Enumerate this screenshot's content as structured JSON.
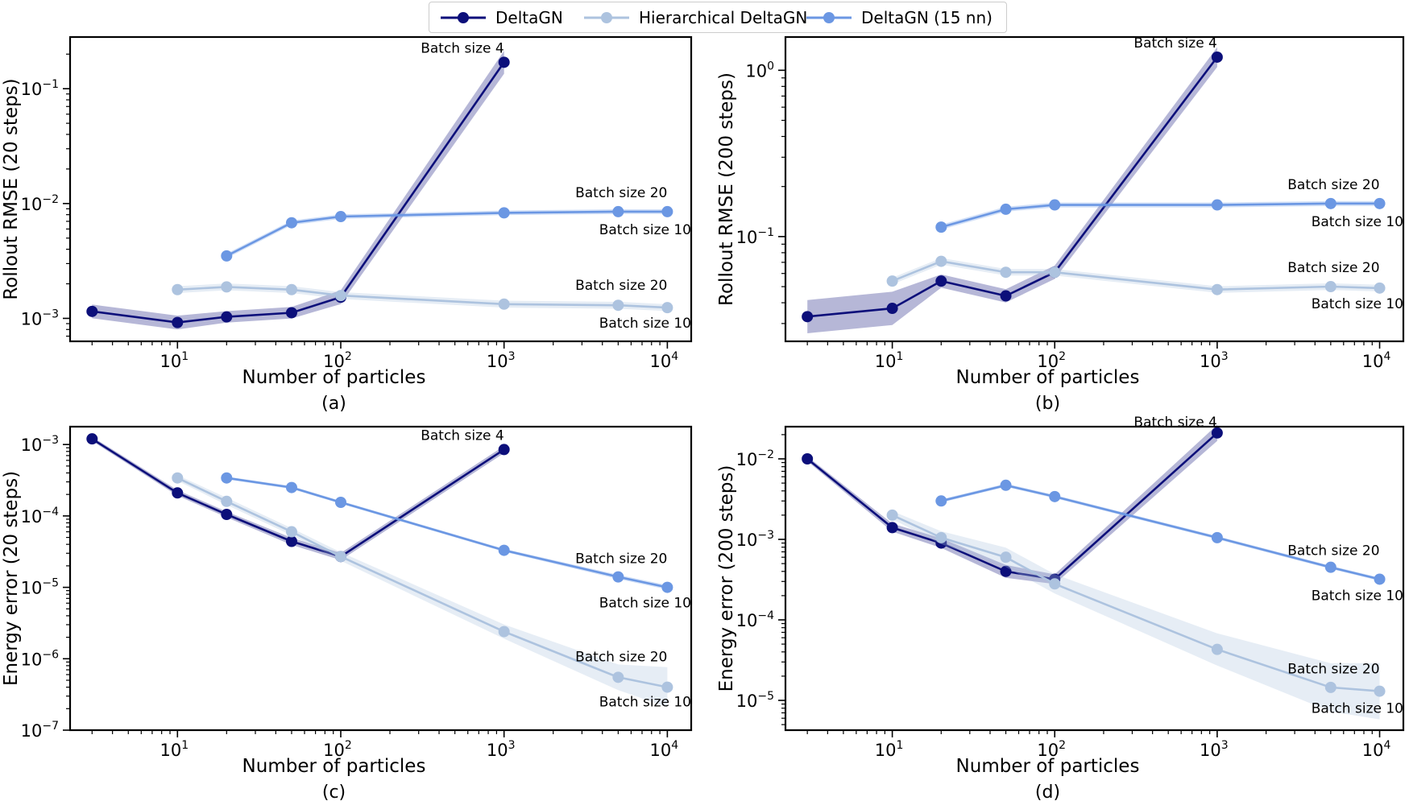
{
  "colors": {
    "DeltaGN": "#0c0f7a",
    "Hierarchical DeltaGN": "#adc3df",
    "DeltaGN (15 nn)": "#6b97e3"
  },
  "legend": {
    "items": [
      {
        "label": "DeltaGN",
        "color": "#0c0f7a"
      },
      {
        "label": "Hierarchical DeltaGN",
        "color": "#adc3df"
      },
      {
        "label": "DeltaGN (15 nn)",
        "color": "#6b97e3"
      }
    ]
  },
  "chart_data": [
    {
      "type": "line",
      "caption": "(a)",
      "xlabel": "Number of particles",
      "ylabel": "Rollout RMSE (20 steps)",
      "xscale": "log",
      "yscale": "log",
      "xlim": [
        2.2,
        14000
      ],
      "ylim_exp": [
        -3.2,
        -0.55
      ],
      "xticks": [
        {
          "value": 10,
          "base": "10",
          "exp": "1"
        },
        {
          "value": 100,
          "base": "10",
          "exp": "2"
        },
        {
          "value": 1000,
          "base": "10",
          "exp": "3"
        },
        {
          "value": 10000,
          "base": "10",
          "exp": "4"
        }
      ],
      "yticks": [
        {
          "exp_value": -3,
          "base": "10",
          "exp": "−3"
        },
        {
          "exp_value": -2,
          "base": "10",
          "exp": "−2"
        },
        {
          "exp_value": -1,
          "base": "10",
          "exp": "−1"
        }
      ],
      "series": [
        {
          "name": "DeltaGN",
          "x": [
            3,
            10,
            20,
            50,
            100,
            1000
          ],
          "y": [
            0.00115,
            0.00092,
            0.00103,
            0.00112,
            0.00153,
            0.17
          ],
          "band": [
            0.06,
            0.06,
            0.05,
            0.05,
            0.06,
            0.1
          ]
        },
        {
          "name": "Hierarchical DeltaGN",
          "x": [
            10,
            20,
            50,
            100,
            1000,
            5000,
            10000
          ],
          "y": [
            0.00178,
            0.00188,
            0.00178,
            0.00158,
            0.00133,
            0.0013,
            0.00124
          ],
          "band": [
            0.03,
            0.03,
            0.03,
            0.03,
            0.03,
            0.03,
            0.03
          ]
        },
        {
          "name": "DeltaGN (15 nn)",
          "x": [
            20,
            50,
            100,
            1000,
            5000,
            10000
          ],
          "y": [
            0.0035,
            0.0068,
            0.0077,
            0.0083,
            0.0085,
            0.0085
          ],
          "band": [
            0.02,
            0.02,
            0.02,
            0.02,
            0.02,
            0.02
          ]
        }
      ],
      "annotations": [
        {
          "text": "Batch size 4",
          "x": 1000,
          "y": 0.17,
          "anchor": "end",
          "dy": -12
        },
        {
          "text": "Batch size 20",
          "x": 10000,
          "y": 0.0085,
          "anchor": "end",
          "dy": -18
        },
        {
          "text": "Batch size 10",
          "x": 14000,
          "y": 0.0085,
          "anchor": "end",
          "dy": 28
        },
        {
          "text": "Batch size 20",
          "x": 10000,
          "y": 0.00124,
          "anchor": "end",
          "dy": -22
        },
        {
          "text": "Batch size 10",
          "x": 14000,
          "y": 0.00124,
          "anchor": "end",
          "dy": 25
        }
      ]
    },
    {
      "type": "line",
      "caption": "(b)",
      "xlabel": "Number of particles",
      "ylabel": "Rollout RMSE (200 steps)",
      "xscale": "log",
      "yscale": "log",
      "xlim": [
        2.2,
        14000
      ],
      "ylim_exp": [
        -1.63,
        0.2
      ],
      "xticks": [
        {
          "value": 10,
          "base": "10",
          "exp": "1"
        },
        {
          "value": 100,
          "base": "10",
          "exp": "2"
        },
        {
          "value": 1000,
          "base": "10",
          "exp": "3"
        },
        {
          "value": 10000,
          "base": "10",
          "exp": "4"
        }
      ],
      "yticks": [
        {
          "exp_value": -1,
          "base": "10",
          "exp": "−1"
        },
        {
          "exp_value": 0,
          "base": "10",
          "exp": "0"
        }
      ],
      "series": [
        {
          "name": "DeltaGN",
          "x": [
            3,
            10,
            20,
            50,
            100,
            1000
          ],
          "y": [
            0.033,
            0.037,
            0.054,
            0.044,
            0.061,
            1.2
          ],
          "band": [
            0.1,
            0.1,
            0.04,
            0.04,
            0.04,
            0.06
          ]
        },
        {
          "name": "Hierarchical DeltaGN",
          "x": [
            10,
            20,
            50,
            100,
            1000,
            5000,
            10000
          ],
          "y": [
            0.054,
            0.071,
            0.061,
            0.061,
            0.048,
            0.05,
            0.049
          ],
          "band": [
            0.02,
            0.02,
            0.02,
            0.02,
            0.02,
            0.02,
            0.02
          ]
        },
        {
          "name": "DeltaGN (15 nn)",
          "x": [
            20,
            50,
            100,
            1000,
            5000,
            10000
          ],
          "y": [
            0.114,
            0.146,
            0.155,
            0.155,
            0.158,
            0.158
          ],
          "band": [
            0.015,
            0.015,
            0.015,
            0.015,
            0.015,
            0.015
          ]
        }
      ],
      "annotations": [
        {
          "text": "Batch size 4",
          "x": 1000,
          "y": 1.2,
          "anchor": "end",
          "dy": -12
        },
        {
          "text": "Batch size 20",
          "x": 10000,
          "y": 0.158,
          "anchor": "end",
          "dy": -18
        },
        {
          "text": "Batch size 10",
          "x": 14000,
          "y": 0.158,
          "anchor": "end",
          "dy": 28
        },
        {
          "text": "Batch size 20",
          "x": 10000,
          "y": 0.049,
          "anchor": "end",
          "dy": -20
        },
        {
          "text": "Batch size 10",
          "x": 14000,
          "y": 0.049,
          "anchor": "end",
          "dy": 25
        }
      ]
    },
    {
      "type": "line",
      "caption": "(c)",
      "xlabel": "Number of particles",
      "ylabel": "Energy error (20 steps)",
      "xscale": "log",
      "yscale": "log",
      "xlim": [
        2.2,
        14000
      ],
      "ylim_exp": [
        -7.0,
        -2.75
      ],
      "xticks": [
        {
          "value": 10,
          "base": "10",
          "exp": "1"
        },
        {
          "value": 100,
          "base": "10",
          "exp": "2"
        },
        {
          "value": 1000,
          "base": "10",
          "exp": "3"
        },
        {
          "value": 10000,
          "base": "10",
          "exp": "4"
        }
      ],
      "yticks": [
        {
          "exp_value": -7,
          "base": "10",
          "exp": "−7"
        },
        {
          "exp_value": -6,
          "base": "10",
          "exp": "−6"
        },
        {
          "exp_value": -5,
          "base": "10",
          "exp": "−5"
        },
        {
          "exp_value": -4,
          "base": "10",
          "exp": "−4"
        },
        {
          "exp_value": -3,
          "base": "10",
          "exp": "−3"
        }
      ],
      "series": [
        {
          "name": "DeltaGN",
          "x": [
            3,
            10,
            20,
            50,
            100,
            1000
          ],
          "y": [
            0.0012,
            0.00021,
            0.000105,
            4.4e-05,
            2.7e-05,
            0.00085
          ],
          "band": [
            0.03,
            0.04,
            0.04,
            0.05,
            0.05,
            0.05
          ]
        },
        {
          "name": "Hierarchical DeltaGN",
          "x": [
            10,
            20,
            50,
            100,
            1000,
            5000,
            10000
          ],
          "y": [
            0.00034,
            0.00016,
            6e-05,
            2.7e-05,
            2.4e-06,
            5.5e-07,
            4e-07
          ],
          "band": [
            0.04,
            0.05,
            0.05,
            0.06,
            0.1,
            0.18,
            0.28
          ]
        },
        {
          "name": "DeltaGN (15 nn)",
          "x": [
            20,
            50,
            100,
            1000,
            5000,
            10000
          ],
          "y": [
            0.00034,
            0.00025,
            0.000155,
            3.3e-05,
            1.4e-05,
            1e-05
          ],
          "band": [
            0.02,
            0.02,
            0.02,
            0.02,
            0.03,
            0.03
          ]
        }
      ],
      "annotations": [
        {
          "text": "Batch size 4",
          "x": 1000,
          "y": 0.00085,
          "anchor": "end",
          "dy": -12
        },
        {
          "text": "Batch size 20",
          "x": 10000,
          "y": 1e-05,
          "anchor": "end",
          "dy": -30
        },
        {
          "text": "Batch size 10",
          "x": 14000,
          "y": 1e-05,
          "anchor": "end",
          "dy": 25
        },
        {
          "text": "Batch size 20",
          "x": 10000,
          "y": 4e-07,
          "anchor": "end",
          "dy": -32
        },
        {
          "text": "Batch size 10",
          "x": 14000,
          "y": 4e-07,
          "anchor": "end",
          "dy": 24
        }
      ]
    },
    {
      "type": "line",
      "caption": "(d)",
      "xlabel": "Number of particles",
      "ylabel": "Energy error (200 steps)",
      "xscale": "log",
      "yscale": "log",
      "xlim": [
        2.2,
        14000
      ],
      "ylim_exp": [
        -5.37,
        -1.6
      ],
      "xticks": [
        {
          "value": 10,
          "base": "10",
          "exp": "1"
        },
        {
          "value": 100,
          "base": "10",
          "exp": "2"
        },
        {
          "value": 1000,
          "base": "10",
          "exp": "3"
        },
        {
          "value": 10000,
          "base": "10",
          "exp": "4"
        }
      ],
      "yticks": [
        {
          "exp_value": -5,
          "base": "10",
          "exp": "−5"
        },
        {
          "exp_value": -4,
          "base": "10",
          "exp": "−4"
        },
        {
          "exp_value": -3,
          "base": "10",
          "exp": "−3"
        },
        {
          "exp_value": -2,
          "base": "10",
          "exp": "−2"
        }
      ],
      "series": [
        {
          "name": "DeltaGN",
          "x": [
            3,
            10,
            20,
            50,
            100,
            1000
          ],
          "y": [
            0.01,
            0.0014,
            0.0009,
            0.0004,
            0.00032,
            0.021
          ],
          "band": [
            0.03,
            0.05,
            0.06,
            0.08,
            0.06,
            0.1
          ]
        },
        {
          "name": "Hierarchical DeltaGN",
          "x": [
            10,
            20,
            50,
            100,
            1000,
            5000,
            10000
          ],
          "y": [
            0.002,
            0.00105,
            0.0006,
            0.00028,
            4.3e-05,
            1.45e-05,
            1.3e-05
          ],
          "band": [
            0.05,
            0.08,
            0.12,
            0.12,
            0.2,
            0.3,
            0.35
          ]
        },
        {
          "name": "DeltaGN (15 nn)",
          "x": [
            20,
            50,
            100,
            1000,
            5000,
            10000
          ],
          "y": [
            0.003,
            0.0047,
            0.0034,
            0.00105,
            0.00045,
            0.00032
          ],
          "band": [
            0.02,
            0.02,
            0.02,
            0.02,
            0.02,
            0.02
          ]
        }
      ],
      "annotations": [
        {
          "text": "Batch size 4",
          "x": 1000,
          "y": 0.021,
          "anchor": "end",
          "dy": -8
        },
        {
          "text": "Batch size 20",
          "x": 10000,
          "y": 0.00032,
          "anchor": "end",
          "dy": -30
        },
        {
          "text": "Batch size 10",
          "x": 14000,
          "y": 0.00032,
          "anchor": "end",
          "dy": 26
        },
        {
          "text": "Batch size 20",
          "x": 10000,
          "y": 1.3e-05,
          "anchor": "end",
          "dy": -22
        },
        {
          "text": "Batch size 10",
          "x": 14000,
          "y": 1.3e-05,
          "anchor": "end",
          "dy": 27
        }
      ]
    }
  ]
}
